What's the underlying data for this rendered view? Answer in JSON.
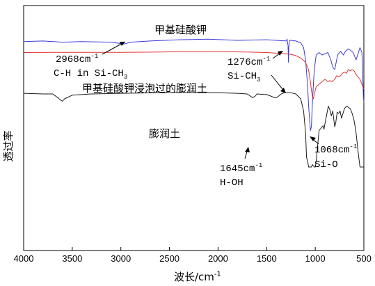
{
  "chart_data": {
    "type": "line",
    "xlabel": "波长/cm",
    "xlabel_sup": "-1",
    "ylabel": "透过率",
    "xlim": [
      4000,
      500
    ],
    "x_ticks": [
      4000,
      3500,
      3000,
      2500,
      2000,
      1500,
      1000,
      500
    ],
    "colors": {
      "blue": "#3a3ad4",
      "red": "#e23030",
      "black": "#1a1a1a"
    },
    "series": [
      {
        "name": "甲基硅酸钾",
        "color": "#3a3ad4",
        "points": [
          [
            4000,
            0.95
          ],
          [
            3800,
            0.955
          ],
          [
            3600,
            0.945
          ],
          [
            3400,
            0.95
          ],
          [
            3100,
            0.945
          ],
          [
            2968,
            0.93
          ],
          [
            2900,
            0.945
          ],
          [
            2700,
            0.955
          ],
          [
            2400,
            0.965
          ],
          [
            2100,
            0.97
          ],
          [
            1800,
            0.96
          ],
          [
            1500,
            0.965
          ],
          [
            1400,
            0.96
          ],
          [
            1300,
            0.955
          ],
          [
            1290,
            0.97
          ],
          [
            1280,
            0.92
          ],
          [
            1276,
            0.78
          ],
          [
            1272,
            0.9
          ],
          [
            1265,
            0.96
          ],
          [
            1250,
            0.96
          ],
          [
            1200,
            0.955
          ],
          [
            1150,
            0.94
          ],
          [
            1120,
            0.9
          ],
          [
            1100,
            0.8
          ],
          [
            1080,
            0.6
          ],
          [
            1068,
            0.42
          ],
          [
            1050,
            0.22
          ],
          [
            1040,
            0.25
          ],
          [
            1030,
            0.45
          ],
          [
            1010,
            0.72
          ],
          [
            990,
            0.84
          ],
          [
            960,
            0.86
          ],
          [
            930,
            0.84
          ],
          [
            900,
            0.85
          ],
          [
            870,
            0.86
          ],
          [
            840,
            0.8
          ],
          [
            820,
            0.74
          ],
          [
            800,
            0.72
          ],
          [
            790,
            0.76
          ],
          [
            770,
            0.84
          ],
          [
            740,
            0.87
          ],
          [
            710,
            0.84
          ],
          [
            690,
            0.87
          ],
          [
            660,
            0.89
          ],
          [
            640,
            0.88
          ],
          [
            610,
            0.86
          ],
          [
            580,
            0.8
          ],
          [
            560,
            0.85
          ],
          [
            540,
            0.9
          ],
          [
            520,
            0.86
          ],
          [
            505,
            0.5
          ],
          [
            500,
            0.45
          ]
        ]
      },
      {
        "name": "甲基硅酸钾浸泡过的膨润土",
        "color": "#e23030",
        "points": [
          [
            4000,
            0.86
          ],
          [
            3700,
            0.862
          ],
          [
            3400,
            0.861
          ],
          [
            3000,
            0.862
          ],
          [
            2600,
            0.864
          ],
          [
            2300,
            0.868
          ],
          [
            2000,
            0.867
          ],
          [
            1700,
            0.864
          ],
          [
            1500,
            0.86
          ],
          [
            1300,
            0.85
          ],
          [
            1250,
            0.845
          ],
          [
            1200,
            0.835
          ],
          [
            1150,
            0.815
          ],
          [
            1100,
            0.78
          ],
          [
            1070,
            0.72
          ],
          [
            1050,
            0.62
          ],
          [
            1040,
            0.55
          ],
          [
            1030,
            0.5
          ],
          [
            1020,
            0.48
          ],
          [
            1010,
            0.52
          ],
          [
            990,
            0.58
          ],
          [
            960,
            0.6
          ],
          [
            930,
            0.62
          ],
          [
            900,
            0.64
          ],
          [
            870,
            0.62
          ],
          [
            850,
            0.63
          ],
          [
            830,
            0.62
          ],
          [
            800,
            0.64
          ],
          [
            780,
            0.67
          ],
          [
            760,
            0.66
          ],
          [
            740,
            0.67
          ],
          [
            720,
            0.69
          ],
          [
            700,
            0.7
          ],
          [
            680,
            0.69
          ],
          [
            660,
            0.72
          ],
          [
            640,
            0.71
          ],
          [
            620,
            0.72
          ],
          [
            600,
            0.71
          ],
          [
            580,
            0.68
          ],
          [
            560,
            0.66
          ],
          [
            540,
            0.64
          ],
          [
            520,
            0.6
          ],
          [
            500,
            0.56
          ]
        ]
      },
      {
        "name": "膨润土",
        "color": "#1a1a1a",
        "points": [
          [
            4000,
            0.525
          ],
          [
            3800,
            0.52
          ],
          [
            3700,
            0.52
          ],
          [
            3650,
            0.49
          ],
          [
            3620,
            0.47
          ],
          [
            3600,
            0.46
          ],
          [
            3580,
            0.48
          ],
          [
            3500,
            0.51
          ],
          [
            3300,
            0.52
          ],
          [
            3000,
            0.525
          ],
          [
            2600,
            0.53
          ],
          [
            2300,
            0.532
          ],
          [
            2000,
            0.53
          ],
          [
            1800,
            0.525
          ],
          [
            1700,
            0.52
          ],
          [
            1645,
            0.49
          ],
          [
            1620,
            0.5
          ],
          [
            1600,
            0.52
          ],
          [
            1500,
            0.515
          ],
          [
            1450,
            0.5
          ],
          [
            1420,
            0.49
          ],
          [
            1400,
            0.49
          ],
          [
            1380,
            0.5
          ],
          [
            1350,
            0.52
          ],
          [
            1320,
            0.53
          ],
          [
            1280,
            0.53
          ],
          [
            1250,
            0.53
          ],
          [
            1200,
            0.52
          ],
          [
            1150,
            0.48
          ],
          [
            1120,
            0.38
          ],
          [
            1100,
            0.2
          ],
          [
            1090,
            0.0
          ],
          [
            1075,
            -0.05
          ],
          [
            1068,
            -0.08
          ],
          [
            1050,
            -0.08
          ],
          [
            1040,
            -0.08
          ],
          [
            1030,
            -0.06
          ],
          [
            1010,
            -0.08
          ],
          [
            1000,
            -0.08
          ],
          [
            990,
            -0.03
          ],
          [
            975,
            0.1
          ],
          [
            960,
            0.22
          ],
          [
            940,
            0.24
          ],
          [
            920,
            0.26
          ],
          [
            910,
            0.23
          ],
          [
            895,
            0.3
          ],
          [
            880,
            0.36
          ],
          [
            865,
            0.42
          ],
          [
            850,
            0.39
          ],
          [
            835,
            0.34
          ],
          [
            820,
            0.38
          ],
          [
            800,
            0.25
          ],
          [
            790,
            0.28
          ],
          [
            775,
            0.37
          ],
          [
            760,
            0.36
          ],
          [
            745,
            0.38
          ],
          [
            730,
            0.32
          ],
          [
            715,
            0.36
          ],
          [
            700,
            0.4
          ],
          [
            690,
            0.41
          ],
          [
            675,
            0.42
          ],
          [
            660,
            0.41
          ],
          [
            640,
            0.4
          ],
          [
            620,
            0.36
          ],
          [
            600,
            0.3
          ],
          [
            580,
            0.2
          ],
          [
            560,
            0.05
          ],
          [
            540,
            -0.08
          ],
          [
            520,
            -0.08
          ],
          [
            505,
            -0.08
          ],
          [
            500,
            -0.08
          ]
        ]
      }
    ],
    "series_labels": [
      "甲基硅酸钾",
      "甲基硅酸钾浸泡过的膨润土",
      "膨润土"
    ],
    "annotations": [
      {
        "id": "anno_2968",
        "lines": [
          "2968cm",
          "C-H in Si-CH"
        ],
        "sup": "-1",
        "sub": "3"
      },
      {
        "id": "anno_1276",
        "lines": [
          "1276cm",
          "Si-CH"
        ],
        "sup": "-1",
        "sub": "3"
      },
      {
        "id": "anno_1645",
        "lines": [
          "1645cm",
          "H-OH"
        ],
        "sup": "-1"
      },
      {
        "id": "anno_1068",
        "lines": [
          "1068cm",
          "Si-O"
        ],
        "sup": "-1"
      }
    ]
  }
}
